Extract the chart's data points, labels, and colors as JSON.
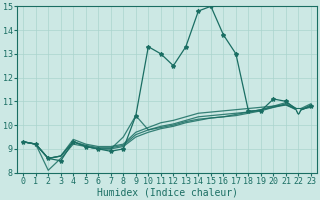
{
  "xlabel": "Humidex (Indice chaleur)",
  "xlim": [
    -0.5,
    23.5
  ],
  "ylim": [
    8,
    15
  ],
  "xticks": [
    0,
    1,
    2,
    3,
    4,
    5,
    6,
    7,
    8,
    9,
    10,
    11,
    12,
    13,
    14,
    15,
    16,
    17,
    18,
    19,
    20,
    21,
    22,
    23
  ],
  "yticks": [
    8,
    9,
    10,
    11,
    12,
    13,
    14,
    15
  ],
  "bg_color": "#cce8e4",
  "line_color": "#1a6e63",
  "grid_color": "#aad4ce",
  "main_line": [
    0,
    9.3,
    1,
    9.2,
    2,
    8.6,
    3,
    8.5,
    4,
    9.3,
    5,
    9.1,
    6,
    9.0,
    7,
    8.9,
    8,
    9.0,
    9,
    10.4,
    10,
    13.3,
    11,
    13.0,
    12,
    12.5,
    13,
    13.3,
    14,
    14.8,
    15,
    15.0,
    16,
    13.8,
    17,
    13.0,
    18,
    10.6,
    19,
    10.6,
    20,
    11.1,
    21,
    11.0,
    22,
    10.6,
    23,
    10.8
  ],
  "extra_lines": [
    [
      0,
      9.3,
      1,
      9.2,
      2,
      8.6,
      3,
      8.7,
      4,
      9.4,
      5,
      9.2,
      6,
      9.1,
      7,
      9.1,
      8,
      9.2,
      9,
      9.7,
      10,
      9.9,
      11,
      10.1,
      12,
      10.2,
      13,
      10.35,
      14,
      10.5,
      15,
      10.55,
      16,
      10.6,
      17,
      10.65,
      18,
      10.7,
      19,
      10.75,
      20,
      10.8,
      21,
      10.85,
      22,
      10.65,
      23,
      10.75
    ],
    [
      0,
      9.3,
      1,
      9.2,
      2,
      8.1,
      3,
      8.6,
      4,
      9.2,
      5,
      9.1,
      6,
      9.0,
      7,
      9.0,
      8,
      9.1,
      9,
      9.5,
      10,
      9.7,
      11,
      9.85,
      12,
      9.95,
      13,
      10.1,
      14,
      10.2,
      15,
      10.3,
      16,
      10.35,
      17,
      10.4,
      18,
      10.5,
      19,
      10.6,
      20,
      10.75,
      21,
      10.9,
      22,
      10.6,
      23,
      10.85
    ],
    [
      0,
      9.3,
      1,
      9.2,
      2,
      8.6,
      3,
      8.7,
      4,
      9.3,
      5,
      9.15,
      6,
      9.05,
      7,
      9.05,
      8,
      9.15,
      9,
      9.6,
      10,
      9.8,
      11,
      9.95,
      12,
      10.05,
      13,
      10.2,
      14,
      10.35,
      15,
      10.4,
      16,
      10.45,
      17,
      10.5,
      18,
      10.55,
      19,
      10.65,
      20,
      10.8,
      21,
      10.95,
      22,
      10.65,
      23,
      10.9
    ],
    [
      0,
      9.3,
      1,
      9.2,
      2,
      8.6,
      3,
      8.7,
      4,
      9.3,
      5,
      9.1,
      6,
      9.0,
      7,
      9.0,
      8,
      9.5,
      9,
      10.4,
      10,
      9.8,
      11,
      9.9,
      12,
      10.0,
      13,
      10.15,
      14,
      10.25,
      15,
      10.3,
      16,
      10.35,
      17,
      10.45,
      18,
      10.55,
      19,
      10.65,
      20,
      10.75,
      21,
      10.85,
      22,
      10.6,
      23,
      10.8
    ]
  ],
  "triangle_x": 22,
  "triangle_y": 10.6,
  "fontsize_xlabel": 7,
  "fontsize_ticks": 6
}
